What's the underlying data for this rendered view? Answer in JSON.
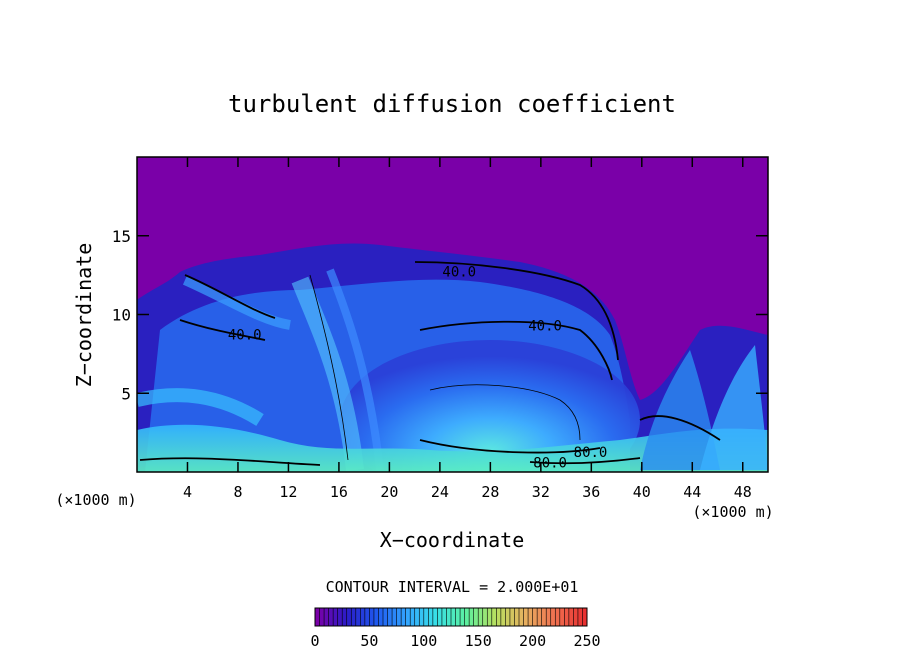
{
  "chart_data": {
    "type": "heatmap",
    "title": "turbulent diffusion coefficient",
    "xlabel": "X−coordinate",
    "ylabel": "Z−coordinate",
    "x_unit_left": "(×1000 m)",
    "x_unit_right": "(×1000 m)",
    "xlim": [
      0,
      50
    ],
    "ylim": [
      0,
      20
    ],
    "x_ticks": [
      {
        "value": 4,
        "label": "4"
      },
      {
        "value": 8,
        "label": "8"
      },
      {
        "value": 12,
        "label": "12"
      },
      {
        "value": 16,
        "label": "16"
      },
      {
        "value": 20,
        "label": "20"
      },
      {
        "value": 24,
        "label": "24"
      },
      {
        "value": 28,
        "label": "28"
      },
      {
        "value": 32,
        "label": "32"
      },
      {
        "value": 36,
        "label": "36"
      },
      {
        "value": 40,
        "label": "40"
      },
      {
        "value": 44,
        "label": "44"
      },
      {
        "value": 48,
        "label": "48"
      }
    ],
    "y_ticks": [
      {
        "value": 5,
        "label": "5"
      },
      {
        "value": 10,
        "label": "10"
      },
      {
        "value": 15,
        "label": "15"
      }
    ],
    "contour_interval_text": "CONTOUR INTERVAL = 2.000E+01",
    "contour_labels": [
      {
        "text": "40.0",
        "x": 24.2,
        "y": 12.4
      },
      {
        "text": "40.0",
        "x": 31.0,
        "y": 9.0
      },
      {
        "text": "40.0",
        "x": 7.2,
        "y": 8.4
      },
      {
        "text": "80.0",
        "x": 34.6,
        "y": 0.95
      },
      {
        "text": "80.0",
        "x": 31.4,
        "y": 0.3
      }
    ],
    "colorbar": {
      "min": 0,
      "max": 250,
      "ticks": [
        {
          "value": 0,
          "label": "0"
        },
        {
          "value": 50,
          "label": "50"
        },
        {
          "value": 100,
          "label": "100"
        },
        {
          "value": 150,
          "label": "150"
        },
        {
          "value": 200,
          "label": "200"
        },
        {
          "value": 250,
          "label": "250"
        }
      ],
      "colors": [
        "#7a00a8",
        "#2a1cc8",
        "#1f5af0",
        "#33a4ff",
        "#38e0e8",
        "#5cf0a0",
        "#b8e060",
        "#e8b060",
        "#f07050",
        "#e83030"
      ]
    },
    "background_color": "#7a00a8"
  }
}
